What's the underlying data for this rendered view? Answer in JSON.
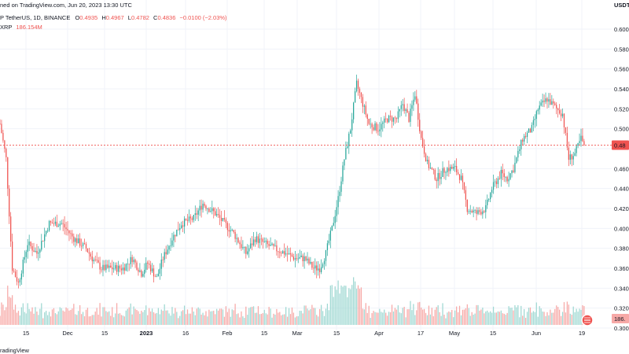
{
  "header": {
    "line1": "ned on TradingView.com, Jun 20, 2023 13:30 UTC",
    "symbol_line": "P TetherUS, 1D, BINANCE",
    "ohlc": [
      {
        "k": "O",
        "v": "0.4935"
      },
      {
        "k": "H",
        "v": "0.4967"
      },
      {
        "k": "L",
        "v": "0.4782"
      },
      {
        "k": "C",
        "v": "0.4836"
      }
    ],
    "change": "−0.0100 (−2.03%)",
    "volume_name": "XRP",
    "volume_value": "186.154M"
  },
  "currency": "USDT",
  "price_tag": "0.48",
  "volume_tag": "186.",
  "brand": "radingView",
  "colors": {
    "up": "#26a69a",
    "down": "#ef5350",
    "up_vol": "#9fd8d2",
    "down_vol": "#f7a9a7",
    "price_line": "#ef5350",
    "grid": "#f0f3fa"
  },
  "chart_data": {
    "type": "candlestick",
    "grid": true,
    "ylim": [
      0.3,
      0.61
    ],
    "y_ticks": [
      "0.300",
      "0.320",
      "0.340",
      "0.360",
      "0.380",
      "0.400",
      "0.420",
      "0.440",
      "0.460",
      "0.480",
      "0.500",
      "0.520",
      "0.540",
      "0.560",
      "0.580",
      "0.600"
    ],
    "x_ticks": [
      "15",
      "Dec",
      "15",
      "2023",
      "16",
      "Feb",
      "15",
      "Mar",
      "15",
      "Apr",
      "17",
      "May",
      "15",
      "Jun",
      "19"
    ],
    "last_price": 0.4836,
    "anchors": [
      [
        0,
        0.505
      ],
      [
        4,
        0.47
      ],
      [
        8,
        0.36
      ],
      [
        12,
        0.345
      ],
      [
        18,
        0.385
      ],
      [
        24,
        0.375
      ],
      [
        32,
        0.405
      ],
      [
        40,
        0.405
      ],
      [
        48,
        0.39
      ],
      [
        56,
        0.38
      ],
      [
        60,
        0.37
      ],
      [
        66,
        0.36
      ],
      [
        72,
        0.36
      ],
      [
        80,
        0.36
      ],
      [
        86,
        0.37
      ],
      [
        92,
        0.355
      ],
      [
        96,
        0.365
      ],
      [
        102,
        0.35
      ],
      [
        106,
        0.37
      ],
      [
        112,
        0.39
      ],
      [
        118,
        0.405
      ],
      [
        126,
        0.41
      ],
      [
        132,
        0.425
      ],
      [
        140,
        0.415
      ],
      [
        146,
        0.405
      ],
      [
        152,
        0.395
      ],
      [
        156,
        0.385
      ],
      [
        160,
        0.375
      ],
      [
        166,
        0.39
      ],
      [
        172,
        0.385
      ],
      [
        178,
        0.38
      ],
      [
        186,
        0.375
      ],
      [
        192,
        0.37
      ],
      [
        198,
        0.37
      ],
      [
        204,
        0.36
      ],
      [
        208,
        0.36
      ],
      [
        212,
        0.375
      ],
      [
        216,
        0.4
      ],
      [
        220,
        0.43
      ],
      [
        224,
        0.47
      ],
      [
        228,
        0.5
      ],
      [
        232,
        0.545
      ],
      [
        236,
        0.525
      ],
      [
        240,
        0.505
      ],
      [
        246,
        0.5
      ],
      [
        252,
        0.51
      ],
      [
        258,
        0.51
      ],
      [
        262,
        0.525
      ],
      [
        266,
        0.51
      ],
      [
        270,
        0.535
      ],
      [
        274,
        0.49
      ],
      [
        278,
        0.465
      ],
      [
        284,
        0.45
      ],
      [
        290,
        0.46
      ],
      [
        296,
        0.46
      ],
      [
        300,
        0.45
      ],
      [
        304,
        0.42
      ],
      [
        310,
        0.415
      ],
      [
        316,
        0.42
      ],
      [
        320,
        0.44
      ],
      [
        326,
        0.455
      ],
      [
        330,
        0.45
      ],
      [
        334,
        0.46
      ],
      [
        340,
        0.49
      ],
      [
        346,
        0.5
      ],
      [
        350,
        0.52
      ],
      [
        356,
        0.53
      ],
      [
        362,
        0.52
      ],
      [
        366,
        0.515
      ],
      [
        370,
        0.47
      ],
      [
        374,
        0.475
      ],
      [
        378,
        0.49
      ],
      [
        380,
        0.4836
      ]
    ],
    "volume_scale_max": 1
  }
}
